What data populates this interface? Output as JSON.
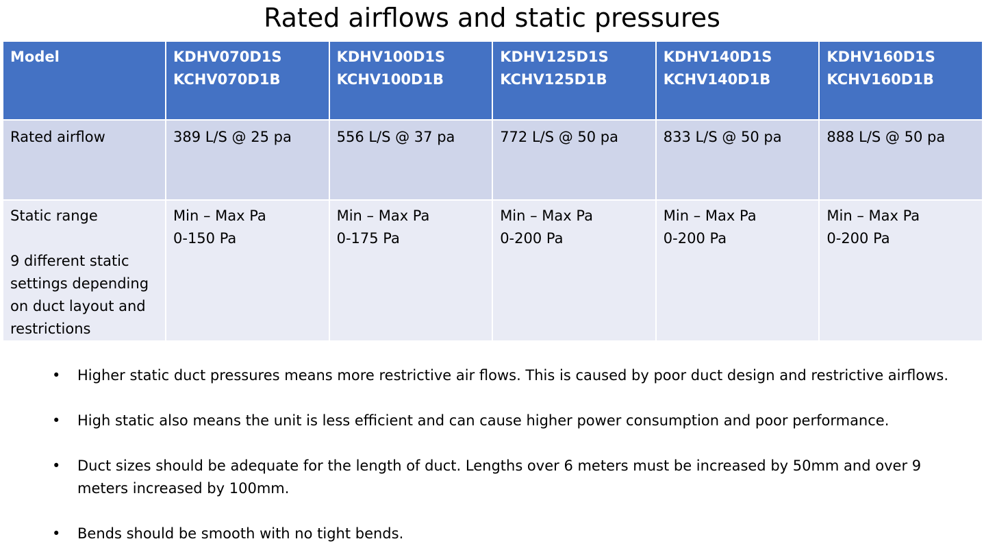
{
  "title": "Rated airflows and static pressures",
  "table": {
    "header": {
      "label": "Model",
      "models": [
        "KDHV070D1S\nKCHV070D1B",
        "KDHV100D1S\nKCHV100D1B",
        "KDHV125D1S\nKCHV125D1B",
        "KDHV140D1S\nKCHV140D1B",
        "KDHV160D1S\nKCHV160D1B"
      ]
    },
    "rated_airflow": {
      "label": "Rated airflow",
      "values": [
        "389 L/S @ 25 pa",
        "556 L/S @ 37 pa",
        "772 L/S @ 50 pa",
        "833 L/S @ 50 pa",
        "888 L/S @ 50 pa"
      ]
    },
    "static_range": {
      "label": "Static range\n\n9 different static settings depending on duct layout and restrictions",
      "values": [
        "Min – Max Pa\n0-150 Pa",
        "Min – Max Pa\n0-175 Pa",
        "Min – Max Pa\n0-200 Pa",
        "Min – Max Pa\n0-200 Pa",
        "Min – Max Pa\n0-200 Pa"
      ]
    }
  },
  "notes": [
    "Higher static duct pressures means more restrictive air flows. This is caused by poor duct design and restrictive airflows.",
    "High static also means the unit is less efficient and can cause higher power consumption and poor performance.",
    "Duct sizes should be adequate for the length of duct. Lengths over 6 meters must be increased by 50mm and over 9 meters increased  by 100mm.",
    "Bends should be smooth with no tight bends."
  ],
  "bullet_symbol": "•",
  "colors": {
    "header": "#4472c4",
    "row_band_1": "#cfd5ea",
    "row_band_2": "#e9ebf5"
  }
}
